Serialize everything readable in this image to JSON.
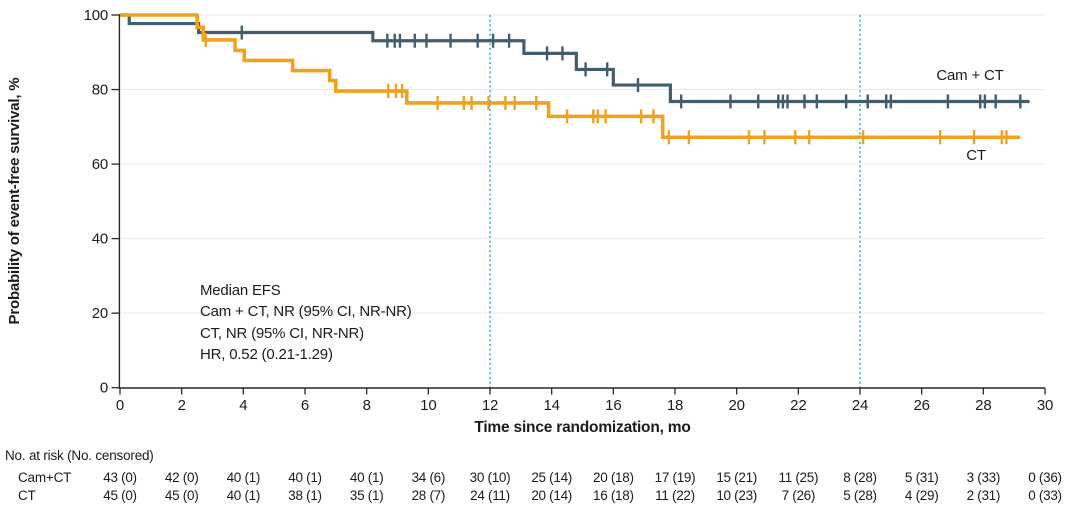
{
  "chart_data": {
    "type": "line",
    "subtype": "kaplan-meier-step",
    "title": "",
    "xlabel": "Time since randomization, mo",
    "ylabel": "Probability of event-free survival, %",
    "xlim": [
      0,
      30
    ],
    "ylim": [
      0,
      100
    ],
    "x_ticks": [
      0,
      2,
      4,
      6,
      8,
      10,
      12,
      14,
      16,
      18,
      20,
      22,
      24,
      26,
      28,
      30
    ],
    "y_ticks": [
      0,
      20,
      40,
      60,
      80,
      100
    ],
    "grid": "horizontal",
    "grid_color": "#E9E9E9",
    "axis_color": "#2A2A2A",
    "text_color": "#1c1c1c",
    "reference_lines": {
      "months": [
        12,
        24
      ],
      "color": "#3FB5E6",
      "style": "dotted"
    },
    "series": [
      {
        "name": "cam-ct",
        "label": "Cam + CT",
        "color": "#435D6D",
        "line_width": 3.2,
        "start": 100,
        "drops": [
          [
            0.3,
            97.7
          ],
          [
            2.55,
            95.3
          ],
          [
            8.2,
            93.1
          ],
          [
            13.1,
            89.7
          ],
          [
            14.8,
            85.4
          ],
          [
            16.0,
            81.2
          ],
          [
            17.85,
            76.8
          ]
        ],
        "end_month": 29.5,
        "censors": [
          [
            3.95,
            95.3
          ],
          [
            8.67,
            93.1
          ],
          [
            8.91,
            93.1
          ],
          [
            9.08,
            93.1
          ],
          [
            9.56,
            93.1
          ],
          [
            9.94,
            93.1
          ],
          [
            10.72,
            93.1
          ],
          [
            11.6,
            93.1
          ],
          [
            12.1,
            93.1
          ],
          [
            12.62,
            93.1
          ],
          [
            13.85,
            89.7
          ],
          [
            14.35,
            89.7
          ],
          [
            15.1,
            85.4
          ],
          [
            15.8,
            85.4
          ],
          [
            16.8,
            81.2
          ],
          [
            18.2,
            76.8
          ],
          [
            19.8,
            76.8
          ],
          [
            20.7,
            76.8
          ],
          [
            21.35,
            76.8
          ],
          [
            21.5,
            76.8
          ],
          [
            21.65,
            76.8
          ],
          [
            22.2,
            76.8
          ],
          [
            22.6,
            76.8
          ],
          [
            23.55,
            76.8
          ],
          [
            24.25,
            76.8
          ],
          [
            24.85,
            76.8
          ],
          [
            25.0,
            76.8
          ],
          [
            26.85,
            76.8
          ],
          [
            27.9,
            76.8
          ],
          [
            28.05,
            76.8
          ],
          [
            28.4,
            76.8
          ],
          [
            29.2,
            76.8
          ]
        ]
      },
      {
        "name": "ct",
        "label": "CT",
        "color": "#F0A11E",
        "line_width": 3.6,
        "start": 100,
        "drops": [
          [
            2.5,
            96.7
          ],
          [
            2.7,
            93.3
          ],
          [
            3.73,
            90.5
          ],
          [
            4.03,
            87.8
          ],
          [
            5.6,
            85.1
          ],
          [
            6.8,
            82.4
          ],
          [
            7.0,
            79.6
          ],
          [
            9.3,
            76.4
          ],
          [
            13.9,
            72.8
          ],
          [
            17.6,
            67.2
          ]
        ],
        "end_month": 29.2,
        "censors": [
          [
            2.78,
            93.3
          ],
          [
            8.7,
            79.6
          ],
          [
            8.95,
            79.6
          ],
          [
            9.15,
            79.6
          ],
          [
            10.3,
            76.4
          ],
          [
            11.15,
            76.4
          ],
          [
            11.4,
            76.4
          ],
          [
            11.95,
            76.4
          ],
          [
            12.5,
            76.4
          ],
          [
            12.8,
            76.4
          ],
          [
            13.5,
            76.4
          ],
          [
            14.5,
            72.8
          ],
          [
            15.35,
            72.8
          ],
          [
            15.5,
            72.8
          ],
          [
            15.75,
            72.8
          ],
          [
            16.9,
            72.8
          ],
          [
            17.3,
            72.8
          ],
          [
            17.8,
            67.2
          ],
          [
            18.45,
            67.2
          ],
          [
            20.4,
            67.2
          ],
          [
            20.9,
            67.2
          ],
          [
            21.9,
            67.2
          ],
          [
            22.35,
            67.2
          ],
          [
            24.1,
            67.2
          ],
          [
            26.6,
            67.2
          ],
          [
            27.7,
            67.2
          ],
          [
            28.6,
            67.2
          ],
          [
            28.75,
            67.2
          ]
        ]
      }
    ],
    "annotation": {
      "lines": [
        "Median EFS",
        "Cam + CT, NR (95% CI, NR-NR)",
        "CT, NR (95% CI, NR-NR)",
        "HR, 0.52 (0.21-1.29)"
      ]
    },
    "risk_table": {
      "header": "No. at risk (No. censored)",
      "months": [
        0,
        2,
        4,
        6,
        8,
        10,
        12,
        14,
        16,
        18,
        20,
        22,
        24,
        26,
        28,
        30
      ],
      "rows": [
        {
          "label": "Cam+CT",
          "values": [
            "43 (0)",
            "42 (0)",
            "40 (1)",
            "40 (1)",
            "40 (1)",
            "34 (6)",
            "30 (10)",
            "25 (14)",
            "20 (18)",
            "17 (19)",
            "15 (21)",
            "11 (25)",
            "8 (28)",
            "5 (31)",
            "3 (33)",
            "0 (36)"
          ]
        },
        {
          "label": "CT",
          "values": [
            "45 (0)",
            "45 (0)",
            "40 (1)",
            "38 (1)",
            "35 (1)",
            "28 (7)",
            "24 (11)",
            "20 (14)",
            "16 (18)",
            "11 (22)",
            "10 (23)",
            "7 (26)",
            "5 (28)",
            "4 (29)",
            "2 (31)",
            "0 (33)"
          ]
        }
      ]
    }
  }
}
